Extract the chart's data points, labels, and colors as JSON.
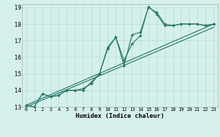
{
  "xlabel": "Humidex (Indice chaleur)",
  "bg_color": "#d5f0eb",
  "line_color": "#2d7a6e",
  "grid_color": "#b8ddd8",
  "xlim": [
    -0.5,
    23.5
  ],
  "ylim": [
    13,
    19.2
  ],
  "xticks": [
    0,
    1,
    2,
    3,
    4,
    5,
    6,
    7,
    8,
    9,
    10,
    11,
    12,
    13,
    14,
    15,
    16,
    17,
    18,
    19,
    20,
    21,
    22,
    23
  ],
  "yticks": [
    13,
    14,
    15,
    16,
    17,
    18,
    19
  ],
  "line1_x": [
    0,
    1,
    2,
    3,
    4,
    5,
    6,
    7,
    8,
    9,
    10,
    11,
    12,
    13,
    14,
    15,
    16,
    17,
    18,
    19,
    20,
    21,
    22,
    23
  ],
  "line1_y": [
    13.1,
    13.0,
    13.8,
    13.6,
    13.7,
    14.0,
    14.0,
    14.1,
    14.4,
    15.0,
    16.6,
    17.2,
    15.5,
    17.35,
    17.5,
    19.0,
    18.7,
    18.0,
    17.9,
    18.0,
    18.0,
    18.0,
    17.9,
    18.0
  ],
  "line2_x": [
    0,
    1,
    2,
    3,
    4,
    5,
    6,
    7,
    8,
    9,
    10,
    11,
    12,
    13,
    14,
    15,
    16,
    17,
    18,
    19,
    20,
    21,
    22,
    23
  ],
  "line2_y": [
    13.1,
    13.0,
    13.8,
    13.6,
    13.7,
    14.0,
    14.0,
    14.0,
    14.5,
    15.0,
    16.5,
    17.2,
    15.8,
    16.8,
    17.3,
    19.05,
    18.6,
    17.9,
    17.9,
    18.0,
    18.0,
    18.0,
    17.9,
    18.0
  ],
  "line3_x": [
    0,
    23
  ],
  "line3_y": [
    13.1,
    18.0
  ],
  "line4_x": [
    0,
    23
  ],
  "line4_y": [
    13.0,
    17.8
  ]
}
